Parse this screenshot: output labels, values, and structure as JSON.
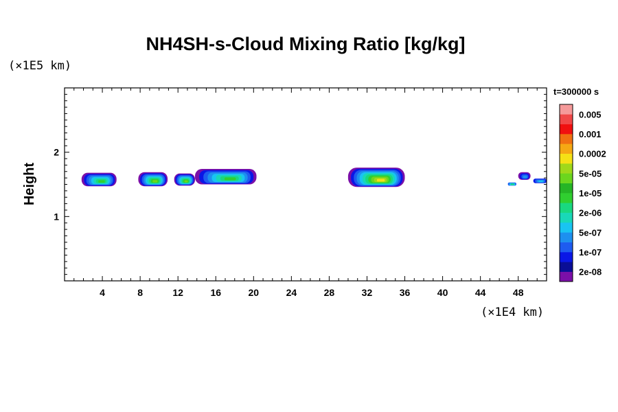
{
  "chart_data": {
    "type": "heatmap",
    "title": "NH4SH-s-Cloud Mixing Ratio [kg/kg]",
    "ylabel": "Height",
    "y_unit": "(×1E5 km)",
    "x_unit": "(×1E4 km)",
    "time_label": "t=300000 s",
    "xlim": [
      0,
      51
    ],
    "ylim": [
      0,
      3
    ],
    "x_ticks": [
      "4",
      "8",
      "12",
      "16",
      "20",
      "24",
      "28",
      "32",
      "36",
      "40",
      "44",
      "48"
    ],
    "y_ticks": [
      "1",
      "2"
    ],
    "colorbar": {
      "colors": [
        "#7b0fa8",
        "#0a0e96",
        "#0a17e6",
        "#1e5cf0",
        "#1d90ef",
        "#19c4f2",
        "#19d8b8",
        "#19d880",
        "#30cf30",
        "#26b526",
        "#6cd61e",
        "#a0d81a",
        "#f5e116",
        "#f5a814",
        "#f07012",
        "#f01010",
        "#f04848",
        "#f59a9a"
      ],
      "labels": [
        "2e-08",
        "1e-07",
        "5e-07",
        "2e-06",
        "1e-05",
        "5e-05",
        "0.0002",
        "0.001",
        "0.005"
      ]
    },
    "cloud_patches": [
      {
        "x": [
          1.8,
          5.5
        ],
        "y": [
          1.47,
          1.68
        ],
        "levels": [
          0,
          2,
          3,
          4,
          5,
          6,
          7,
          8
        ]
      },
      {
        "x": [
          7.8,
          10.9
        ],
        "y": [
          1.47,
          1.69
        ],
        "levels": [
          0,
          2,
          3,
          4,
          5,
          6,
          7,
          8,
          10
        ]
      },
      {
        "x": [
          11.6,
          13.8
        ],
        "y": [
          1.48,
          1.67
        ],
        "levels": [
          0,
          2,
          3,
          4,
          5,
          6,
          7,
          8,
          10
        ]
      },
      {
        "x": [
          13.8,
          20.3
        ],
        "y": [
          1.5,
          1.74
        ],
        "levels": [
          0,
          2,
          3,
          4,
          5,
          6,
          7,
          8
        ]
      },
      {
        "x": [
          30.0,
          36.0
        ],
        "y": [
          1.46,
          1.76
        ],
        "levels": [
          0,
          2,
          3,
          4,
          5,
          6,
          7,
          8,
          10,
          11,
          12
        ]
      },
      {
        "x": [
          46.9,
          47.8
        ],
        "y": [
          1.48,
          1.53
        ],
        "levels": [
          3,
          5,
          7
        ]
      },
      {
        "x": [
          48.0,
          49.3
        ],
        "y": [
          1.57,
          1.69
        ],
        "levels": [
          0,
          2,
          3,
          4
        ]
      },
      {
        "x": [
          49.6,
          51.0
        ],
        "y": [
          1.52,
          1.59
        ],
        "levels": [
          2,
          3,
          4,
          5
        ]
      }
    ]
  }
}
